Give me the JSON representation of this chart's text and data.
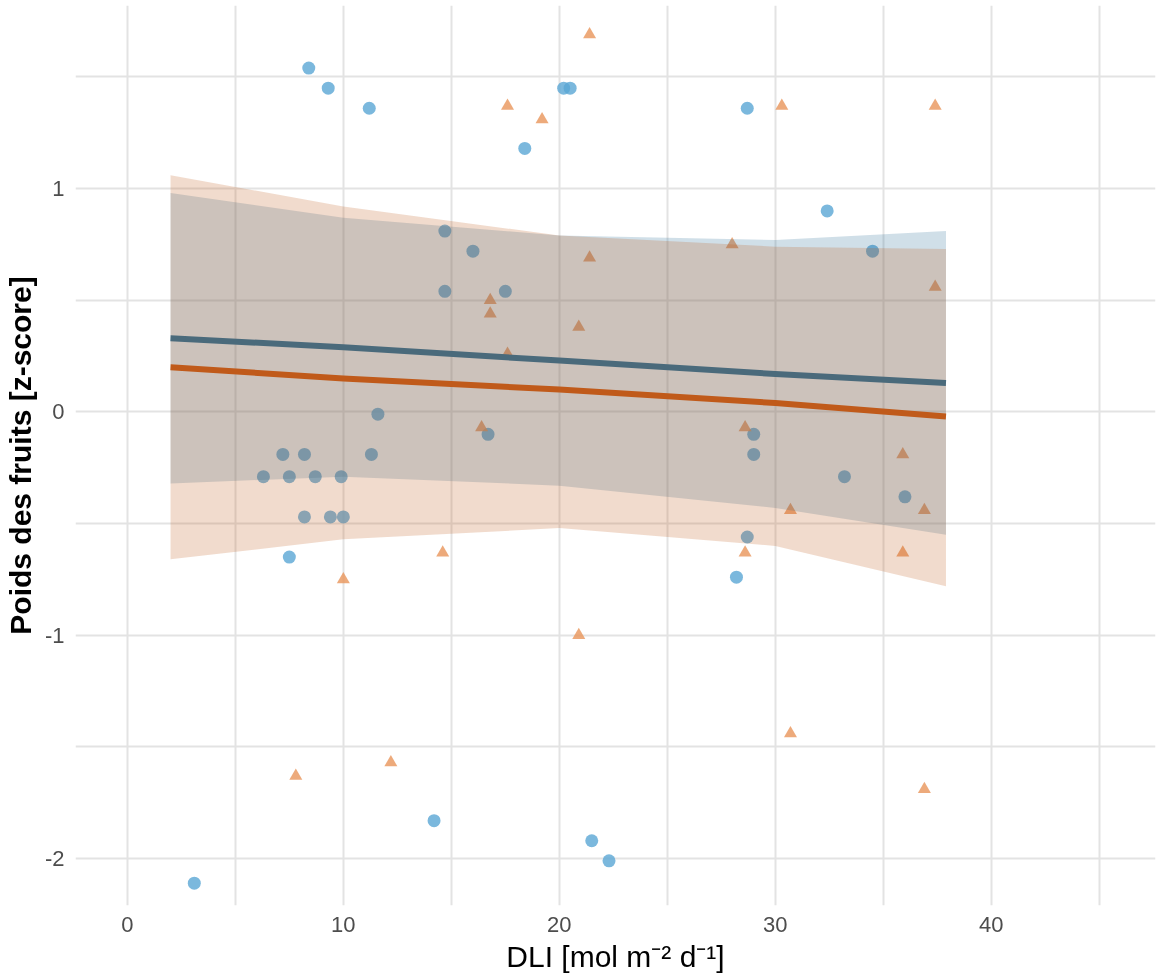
{
  "chart_data": {
    "type": "scatter",
    "xlabel": "DLI [mol m⁻² d⁻¹]",
    "ylabel": "Poids des fruits [z-score]",
    "xlim": [
      -2.4,
      47.6
    ],
    "ylim": [
      -2.21,
      1.82
    ],
    "xticks": [
      0,
      {
        "value": 5,
        "label": null
      },
      10,
      {
        "value": 15,
        "label": null
      },
      20,
      {
        "value": 25,
        "label": null
      },
      30,
      {
        "value": 35,
        "label": null
      },
      40,
      {
        "value": 45,
        "label": null
      }
    ],
    "yticks": [
      -2,
      {
        "value": -1.5,
        "label": null
      },
      -1,
      {
        "value": -0.5,
        "label": null
      },
      0,
      {
        "value": 0.5,
        "label": null
      },
      1,
      {
        "value": 1.5,
        "label": null
      }
    ],
    "grid": true,
    "series": [
      {
        "marker": "circle",
        "color": "#5aa6d4",
        "x": [
          3.1,
          8.4,
          9.3,
          11.2,
          6.3,
          7.2,
          7.5,
          8.2,
          8.7,
          9.9,
          8.2,
          9.4,
          10.0,
          7.5,
          11.3,
          11.6,
          14.7,
          14.7,
          16.0,
          17.5,
          16.7,
          18.4,
          20.2,
          20.5,
          14.2,
          21.5,
          22.3,
          28.7,
          28.2,
          29.0,
          29.0,
          28.7,
          32.4,
          34.5,
          33.2,
          36.0
        ],
        "values": [
          -2.11,
          1.54,
          1.45,
          1.36,
          -0.29,
          -0.19,
          -0.29,
          -0.19,
          -0.29,
          -0.29,
          -0.47,
          -0.47,
          -0.47,
          -0.65,
          -0.19,
          -0.01,
          0.81,
          0.54,
          0.72,
          0.54,
          -0.1,
          1.18,
          1.45,
          1.45,
          -1.83,
          -1.92,
          -2.01,
          1.36,
          -0.74,
          -0.1,
          -0.19,
          -0.56,
          0.9,
          0.72,
          -0.29,
          -0.38
        ]
      },
      {
        "marker": "triangle",
        "color": "#e8955a",
        "x": [
          21.4,
          17.6,
          19.2,
          30.3,
          37.4,
          28.0,
          21.4,
          16.8,
          16.8,
          20.9,
          37.4,
          17.6,
          16.4,
          28.6,
          35.9,
          30.7,
          36.9,
          28.6,
          35.9,
          14.6,
          10.0,
          20.9,
          7.8,
          12.2,
          30.7,
          36.9
        ],
        "values": [
          1.69,
          1.37,
          1.31,
          1.37,
          1.37,
          0.75,
          0.69,
          0.5,
          0.44,
          0.38,
          0.56,
          0.26,
          -0.07,
          -0.07,
          -0.19,
          -0.44,
          -0.44,
          -0.63,
          -0.63,
          -0.63,
          -0.75,
          -1.0,
          -1.63,
          -1.57,
          -1.44,
          -1.69
        ]
      },
      {
        "type": "line",
        "color": "#2a6f97",
        "x": [
          2,
          10,
          20,
          30,
          37.9
        ],
        "values": [
          0.33,
          0.29,
          0.23,
          0.17,
          0.13
        ],
        "lower": [
          -0.32,
          -0.29,
          -0.33,
          -0.43,
          -0.55
        ],
        "upper": [
          0.98,
          0.87,
          0.79,
          0.77,
          0.81
        ]
      },
      {
        "type": "line",
        "color": "#c05a1a",
        "x": [
          2,
          10,
          20,
          30,
          37.9
        ],
        "values": [
          0.2,
          0.15,
          0.1,
          0.04,
          -0.02
        ],
        "lower": [
          -0.66,
          -0.57,
          -0.52,
          -0.6,
          -0.78
        ],
        "upper": [
          1.06,
          0.92,
          0.79,
          0.74,
          0.73
        ]
      }
    ]
  }
}
